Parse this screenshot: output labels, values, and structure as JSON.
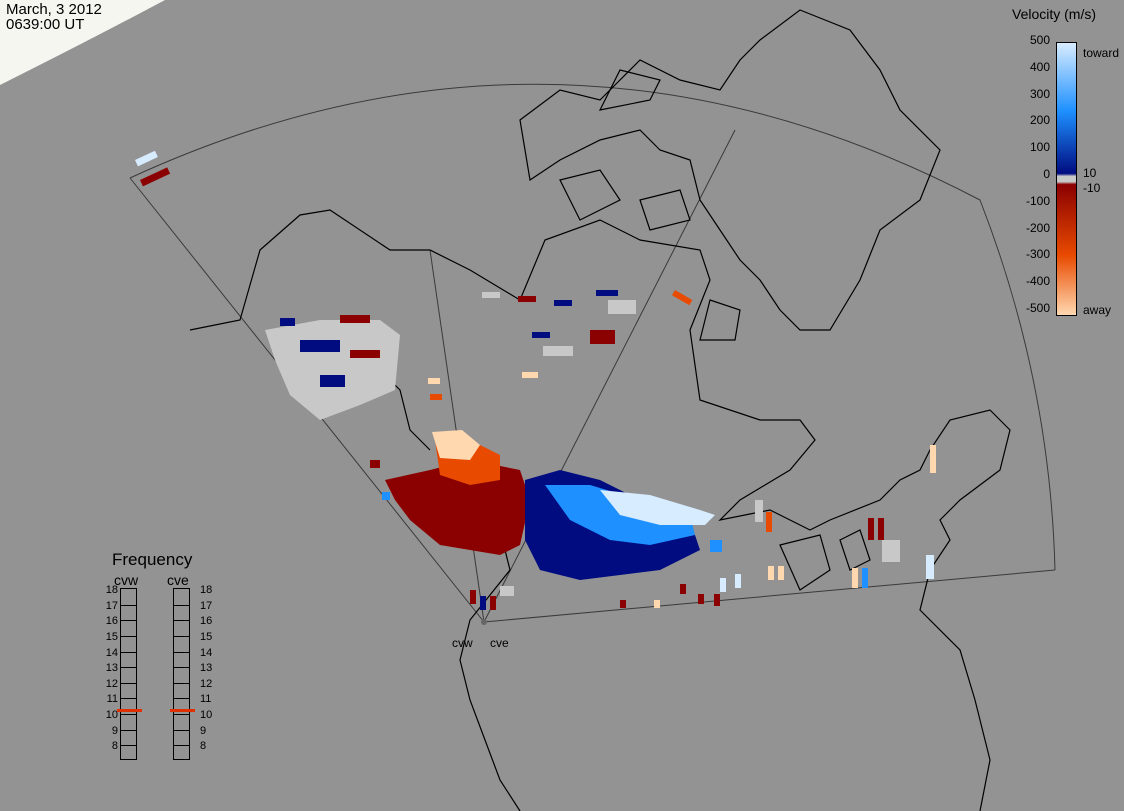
{
  "header": {
    "date": "March, 3 2012",
    "time": "0639:00 UT"
  },
  "colorbar": {
    "title": "Velocity (m/s)",
    "ticks": [
      "500",
      "400",
      "300",
      "200",
      "100",
      "0",
      "-100",
      "-200",
      "-300",
      "-400",
      "-500"
    ],
    "near_zero": [
      "10",
      "-10"
    ],
    "toward_label": "toward",
    "away_label": "away",
    "colors": {
      "toward_high": "#d8ecff",
      "toward_mid": "#1e90ff",
      "toward_low": "#000c80",
      "ground_scatter": "#c8c8c8",
      "away_low": "#8b0000",
      "away_mid": "#e84a00",
      "away_high": "#ffd8b0"
    }
  },
  "frequency": {
    "title": "Frequency",
    "radars": [
      "cvw",
      "cve"
    ],
    "scale": [
      "18",
      "17",
      "16",
      "15",
      "14",
      "13",
      "12",
      "11",
      "10",
      "9",
      "8"
    ],
    "values_mhz": {
      "cvw": 10.8,
      "cve": 10.8
    },
    "marker_color": "#e03000"
  },
  "sites": {
    "labels": [
      "cvw",
      "cve"
    ]
  },
  "colors": {
    "background": "#939393",
    "land": "#939393",
    "coast": "#000000",
    "fov": "#3a3a3a"
  }
}
